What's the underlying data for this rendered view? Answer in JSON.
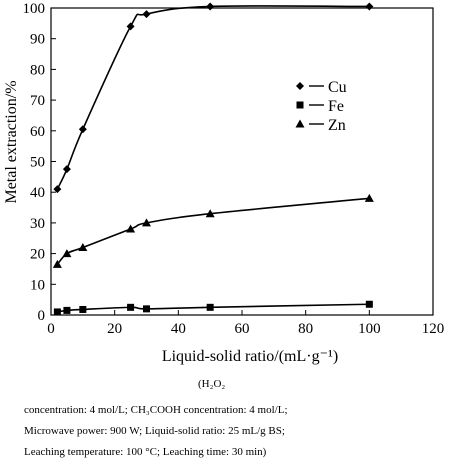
{
  "chart_data": {
    "type": "line",
    "xlabel": "Liquid-solid ratio/(mL·g⁻¹)",
    "ylabel": "Metal extraction/%",
    "xlim": [
      0,
      120
    ],
    "ylim": [
      0,
      100
    ],
    "x_ticks": [
      0,
      20,
      40,
      60,
      80,
      100,
      120
    ],
    "y_ticks": [
      0,
      10,
      20,
      30,
      40,
      50,
      60,
      70,
      80,
      90,
      100
    ],
    "grid": false,
    "legend_position": "right",
    "series": [
      {
        "name": "Cu",
        "marker": "diamond",
        "x": [
          2,
          5,
          10,
          25,
          30,
          50,
          100
        ],
        "y": [
          41,
          47.5,
          60.5,
          94,
          98,
          100.5,
          100.5
        ]
      },
      {
        "name": "Fe",
        "marker": "square",
        "x": [
          2,
          5,
          10,
          25,
          30,
          50,
          100
        ],
        "y": [
          1,
          1.5,
          1.8,
          2.5,
          2,
          2.5,
          3.5
        ]
      },
      {
        "name": "Zn",
        "marker": "triangle",
        "x": [
          2,
          5,
          10,
          25,
          30,
          50,
          100
        ],
        "y": [
          16.5,
          20,
          22,
          28,
          30,
          33,
          38
        ]
      }
    ]
  },
  "caption": {
    "title": "(H₂O₂",
    "line1": "concentration: 4 mol/L; CH₃COOH concentration: 4 mol/L;",
    "line2": "Microwave power: 900 W; Liquid-solid ratio: 25 mL/g BS;",
    "line3": "Leaching temperature: 100 °C; Leaching time: 30 min)"
  }
}
